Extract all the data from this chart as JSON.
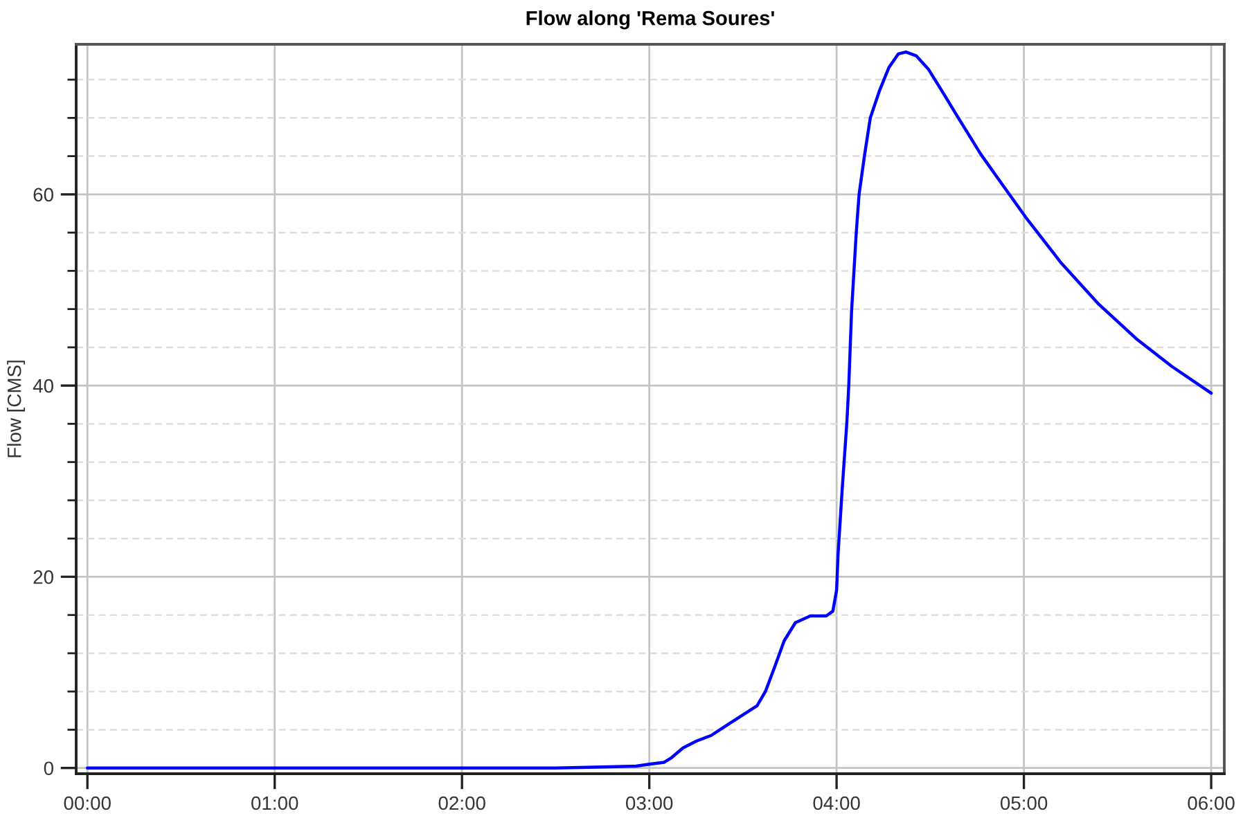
{
  "chart_data": {
    "type": "line",
    "title": "Flow along 'Rema Soures'",
    "ylabel": "Flow [CMS]",
    "x": [
      0,
      1,
      2,
      2.5,
      2.75,
      2.93,
      3.0,
      3.08,
      3.12,
      3.18,
      3.25,
      3.33,
      3.4,
      3.48,
      3.575,
      3.62,
      3.67,
      3.72,
      3.78,
      3.86,
      3.945,
      3.98,
      4.0,
      4.008,
      4.03,
      4.055,
      4.065,
      4.08,
      4.105,
      4.12,
      4.15,
      4.18,
      4.23,
      4.28,
      4.33,
      4.37,
      4.425,
      4.49,
      4.56,
      4.65,
      4.77,
      4.893,
      5.01,
      5.2,
      5.4,
      5.6,
      5.79,
      6.0
    ],
    "series": [
      {
        "color": "#0000ff",
        "values": [
          0,
          0,
          0,
          0,
          0.1,
          0.2,
          0.4,
          0.6,
          1.1,
          2.1,
          2.8,
          3.4,
          4.3,
          5.3,
          6.5,
          8.0,
          10.6,
          13.3,
          15.2,
          15.9,
          15.9,
          16.4,
          18.6,
          22.4,
          29.2,
          36.2,
          40.0,
          47.8,
          56.0,
          60.0,
          64.2,
          68.0,
          70.9,
          73.3,
          74.7,
          74.9,
          74.5,
          73.1,
          70.9,
          68.0,
          64.2,
          60.8,
          57.6,
          52.8,
          48.5,
          44.9,
          42.0,
          39.2
        ]
      }
    ],
    "xlim": [
      -0.06,
      6.07
    ],
    "xticks": [
      {
        "value": 0,
        "label": "00:00"
      },
      {
        "value": 1,
        "label": "01:00"
      },
      {
        "value": 2,
        "label": "02:00"
      },
      {
        "value": 3,
        "label": "03:00"
      },
      {
        "value": 4,
        "label": "04:00"
      },
      {
        "value": 5,
        "label": "05:00"
      },
      {
        "value": 6,
        "label": "06:00"
      }
    ],
    "ylim": [
      -0.6,
      75.7
    ],
    "yticks": [
      0,
      {
        "value": 4,
        "label": null
      },
      {
        "value": 8,
        "label": null
      },
      {
        "value": 12,
        "label": null
      },
      {
        "value": 16,
        "label": null
      },
      20,
      {
        "value": 24,
        "label": null
      },
      {
        "value": 28,
        "label": null
      },
      {
        "value": 32,
        "label": null
      },
      {
        "value": 36,
        "label": null
      },
      40,
      {
        "value": 44,
        "label": null
      },
      {
        "value": 48,
        "label": null
      },
      {
        "value": 52,
        "label": null
      },
      {
        "value": 56,
        "label": null
      },
      60,
      {
        "value": 64,
        "label": null
      },
      {
        "value": 68,
        "label": null
      },
      {
        "value": 72,
        "label": null
      }
    ],
    "grid": true
  }
}
